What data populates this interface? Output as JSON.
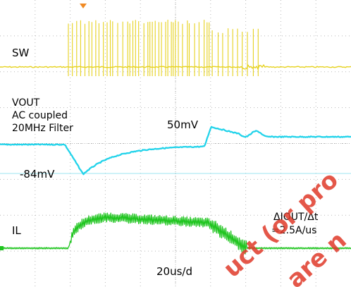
{
  "chart_data": {
    "type": "line",
    "title": "",
    "xlabel": "",
    "ylabel": "",
    "grid": true,
    "timebase": "20us/d",
    "series": [
      {
        "name": "SW",
        "color": "#e6d21e"
      },
      {
        "name": "VOUT",
        "color": "#22d3ea",
        "lines": [
          "VOUT",
          "AC coupled",
          "20MHz Filter"
        ],
        "peak_label": "50mV",
        "dip_label": "-84mV"
      },
      {
        "name": "IL",
        "color": "#1fc51f",
        "slew_label": [
          "ΔIOUT/Δt",
          "=2.5A/us"
        ]
      }
    ],
    "watermark": [
      "uct (or pro",
      "are n"
    ]
  },
  "colors": {
    "grid": "#b8b8b8",
    "vout_ref": "#9ee6f0",
    "watermark": "#e03a2a"
  }
}
